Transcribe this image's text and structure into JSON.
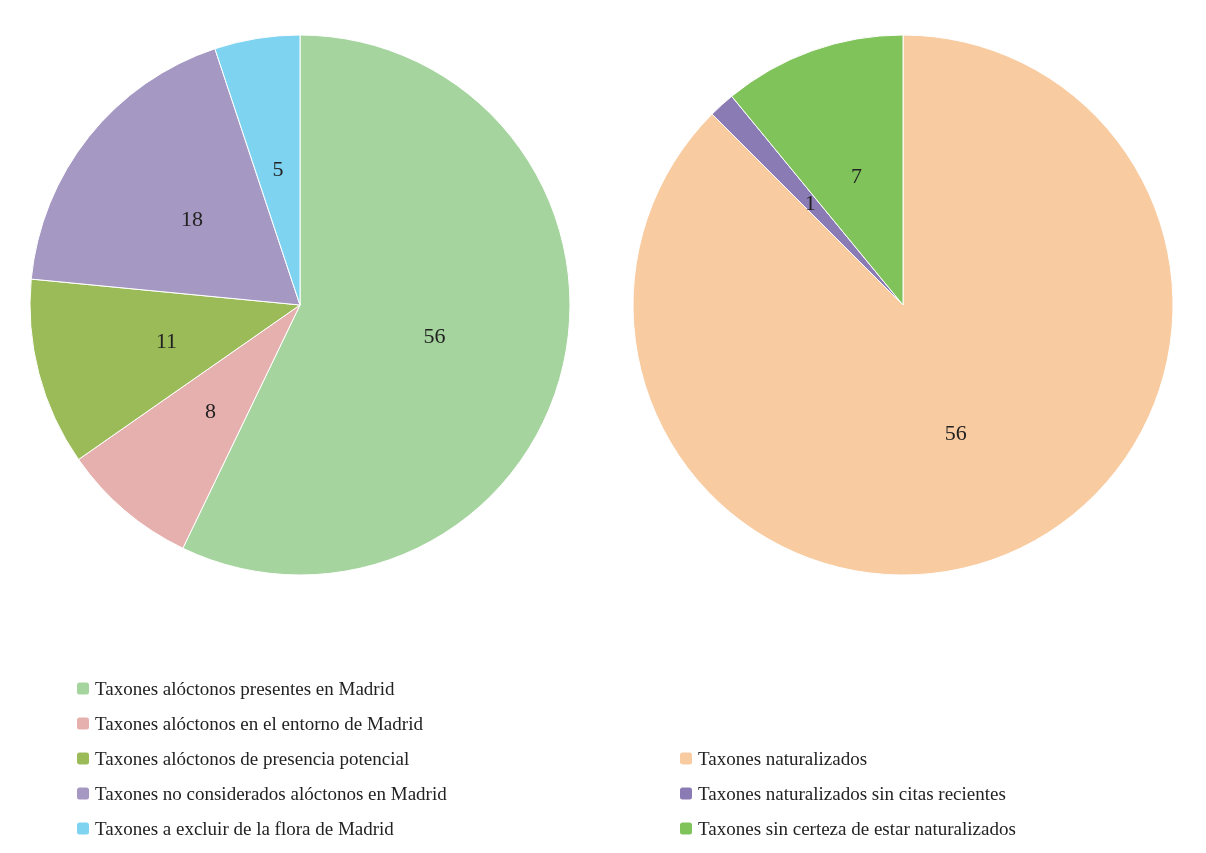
{
  "chart_data": [
    {
      "type": "pie",
      "categories": [
        "Taxones alóctonos presentes en Madrid",
        "Taxones alóctonos en el entorno de Madrid",
        "Taxones alóctonos de presencia potencial",
        "Taxones no considerados alóctonos en Madrid",
        "Taxones a excluir de la flora de Madrid"
      ],
      "values": [
        56,
        8,
        11,
        18,
        5
      ],
      "colors": [
        "#a6d49f",
        "#e6b0ae",
        "#9bbb59",
        "#a598c2",
        "#7dd3f0"
      ],
      "data_labels": true,
      "legend": "bottom"
    },
    {
      "type": "pie",
      "categories": [
        "Taxones naturalizados",
        "Taxones naturalizados sin citas recientes",
        "Taxones sin certeza de estar naturalizados"
      ],
      "values": [
        56,
        1,
        7
      ],
      "colors": [
        "#f9cba0",
        "#8b7bb5",
        "#7fc35a"
      ],
      "data_labels": true,
      "legend": "bottom"
    }
  ]
}
